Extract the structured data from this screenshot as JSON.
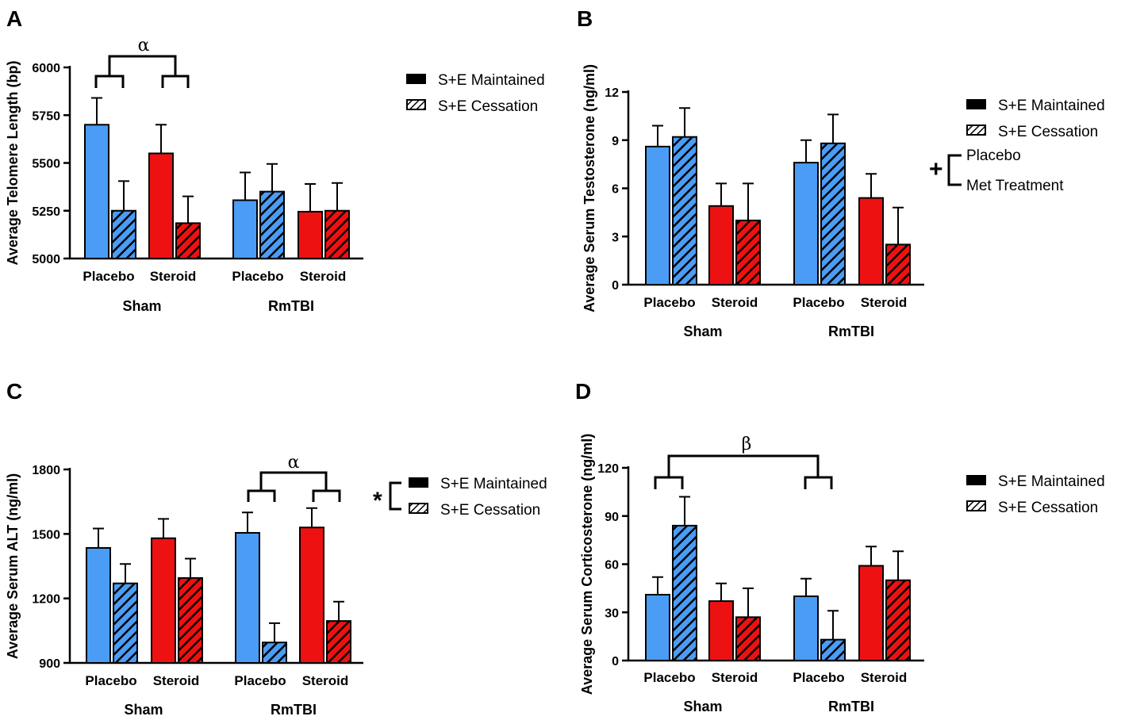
{
  "colors": {
    "placebo": "#4a9cf5",
    "steroid": "#ee1111",
    "hatch_line": "#000000",
    "maintained_swatch": "#000000"
  },
  "legend": {
    "maintained": "S+E Maintained",
    "cessation": "S+E Cessation",
    "placebo": "Placebo",
    "met_treatment": "Met Treatment"
  },
  "groups": [
    "Sham",
    "RmTBI"
  ],
  "categories": [
    "Placebo",
    "Steroid",
    "Placebo",
    "Steroid"
  ],
  "chart_data": [
    {
      "panel": "A",
      "type": "bar",
      "ylabel": "Average Telomere Length (bp)",
      "ylim": [
        5000,
        6000
      ],
      "yticks": [
        5000,
        5250,
        5500,
        5750,
        6000
      ],
      "categories": [
        "Placebo",
        "Steroid",
        "Placebo",
        "Steroid"
      ],
      "groups": [
        "Sham",
        "RmTBI"
      ],
      "series": [
        {
          "name": "S+E Maintained",
          "values": [
            5700,
            5550,
            5305,
            5245
          ],
          "errors": [
            140,
            150,
            145,
            145
          ]
        },
        {
          "name": "S+E Cessation",
          "values": [
            5250,
            5185,
            5350,
            5250
          ],
          "errors": [
            155,
            140,
            145,
            145
          ]
        }
      ],
      "annotation": {
        "symbol": "α",
        "note": "Sham Placebo vs Sham Steroid"
      }
    },
    {
      "panel": "B",
      "type": "bar",
      "ylabel": "Average Serum Testosterone (ng/ml)",
      "ylim": [
        0,
        12
      ],
      "yticks": [
        0,
        3,
        6,
        9,
        12
      ],
      "categories": [
        "Placebo",
        "Steroid",
        "Placebo",
        "Steroid"
      ],
      "groups": [
        "Sham",
        "RmTBI"
      ],
      "series": [
        {
          "name": "S+E Maintained",
          "values": [
            8.6,
            4.9,
            7.6,
            5.4
          ],
          "errors": [
            1.3,
            1.4,
            1.4,
            1.5
          ]
        },
        {
          "name": "S+E Cessation",
          "values": [
            9.2,
            4.0,
            8.8,
            2.5
          ],
          "errors": [
            1.8,
            2.3,
            1.8,
            2.3
          ]
        }
      ],
      "annotation": {
        "symbol": "+",
        "note": "Placebo vs Met Treatment"
      }
    },
    {
      "panel": "C",
      "type": "bar",
      "ylabel": "Average Serum ALT (ng/ml)",
      "ylim": [
        900,
        1800
      ],
      "yticks": [
        900,
        1200,
        1500,
        1800
      ],
      "categories": [
        "Placebo",
        "Steroid",
        "Placebo",
        "Steroid"
      ],
      "groups": [
        "Sham",
        "RmTBI"
      ],
      "series": [
        {
          "name": "S+E Maintained",
          "values": [
            1435,
            1480,
            1505,
            1530
          ],
          "errors": [
            90,
            90,
            95,
            90
          ]
        },
        {
          "name": "S+E Cessation",
          "values": [
            1270,
            1295,
            995,
            1095
          ],
          "errors": [
            90,
            90,
            90,
            90
          ]
        }
      ],
      "annotation": {
        "symbol": "α",
        "symbol2": "*",
        "note": "S+E Maintained vs S+E Cessation"
      }
    },
    {
      "panel": "D",
      "type": "bar",
      "ylabel": "Average Serum Corticosterone (ng/ml)",
      "ylim": [
        0,
        120
      ],
      "yticks": [
        0,
        30,
        60,
        90,
        120
      ],
      "categories": [
        "Placebo",
        "Steroid",
        "Placebo",
        "Steroid"
      ],
      "groups": [
        "Sham",
        "RmTBI"
      ],
      "series": [
        {
          "name": "S+E Maintained",
          "values": [
            41,
            37,
            40,
            59
          ],
          "errors": [
            11,
            11,
            11,
            12
          ]
        },
        {
          "name": "S+E Cessation",
          "values": [
            84,
            27,
            13,
            50
          ],
          "errors": [
            18,
            18,
            18,
            18
          ]
        }
      ],
      "annotation": {
        "symbol": "β",
        "note": "Sham Placebo vs RmTBI Placebo"
      }
    }
  ]
}
